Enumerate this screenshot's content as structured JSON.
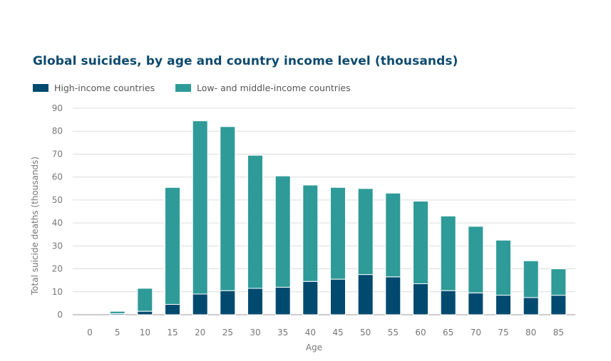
{
  "chart_data": {
    "type": "bar",
    "stacked": true,
    "title": "Global suicides, by age and country income level (thousands)",
    "xlabel": "Age",
    "ylabel": "Total suicide deaths (thousands)",
    "ylim": [
      0,
      90
    ],
    "yticks": [
      "0",
      "10",
      "20",
      "30",
      "40",
      "50",
      "60",
      "70",
      "80",
      "90"
    ],
    "grid": true,
    "legend_position": "top-left",
    "categories": [
      "0",
      "5",
      "10",
      "15",
      "20",
      "25",
      "30",
      "35",
      "40",
      "45",
      "50",
      "55",
      "60",
      "65",
      "70",
      "75",
      "80",
      "85"
    ],
    "series": [
      {
        "name": "High-income countries",
        "color": "#004a6f",
        "values": [
          0,
          0.5,
          1.5,
          4.5,
          9,
          10.5,
          11.5,
          12,
          14.5,
          15.5,
          17.5,
          16.5,
          13.5,
          10.5,
          9.5,
          8.5,
          7.5,
          8.5
        ]
      },
      {
        "name": "Low- and middle-income countries",
        "color": "#2e9b98",
        "values": [
          0,
          1,
          10,
          51,
          75.5,
          71.5,
          58,
          48.5,
          42,
          40,
          37.5,
          36.5,
          36,
          32.5,
          29,
          24,
          16,
          11.5
        ]
      }
    ]
  }
}
